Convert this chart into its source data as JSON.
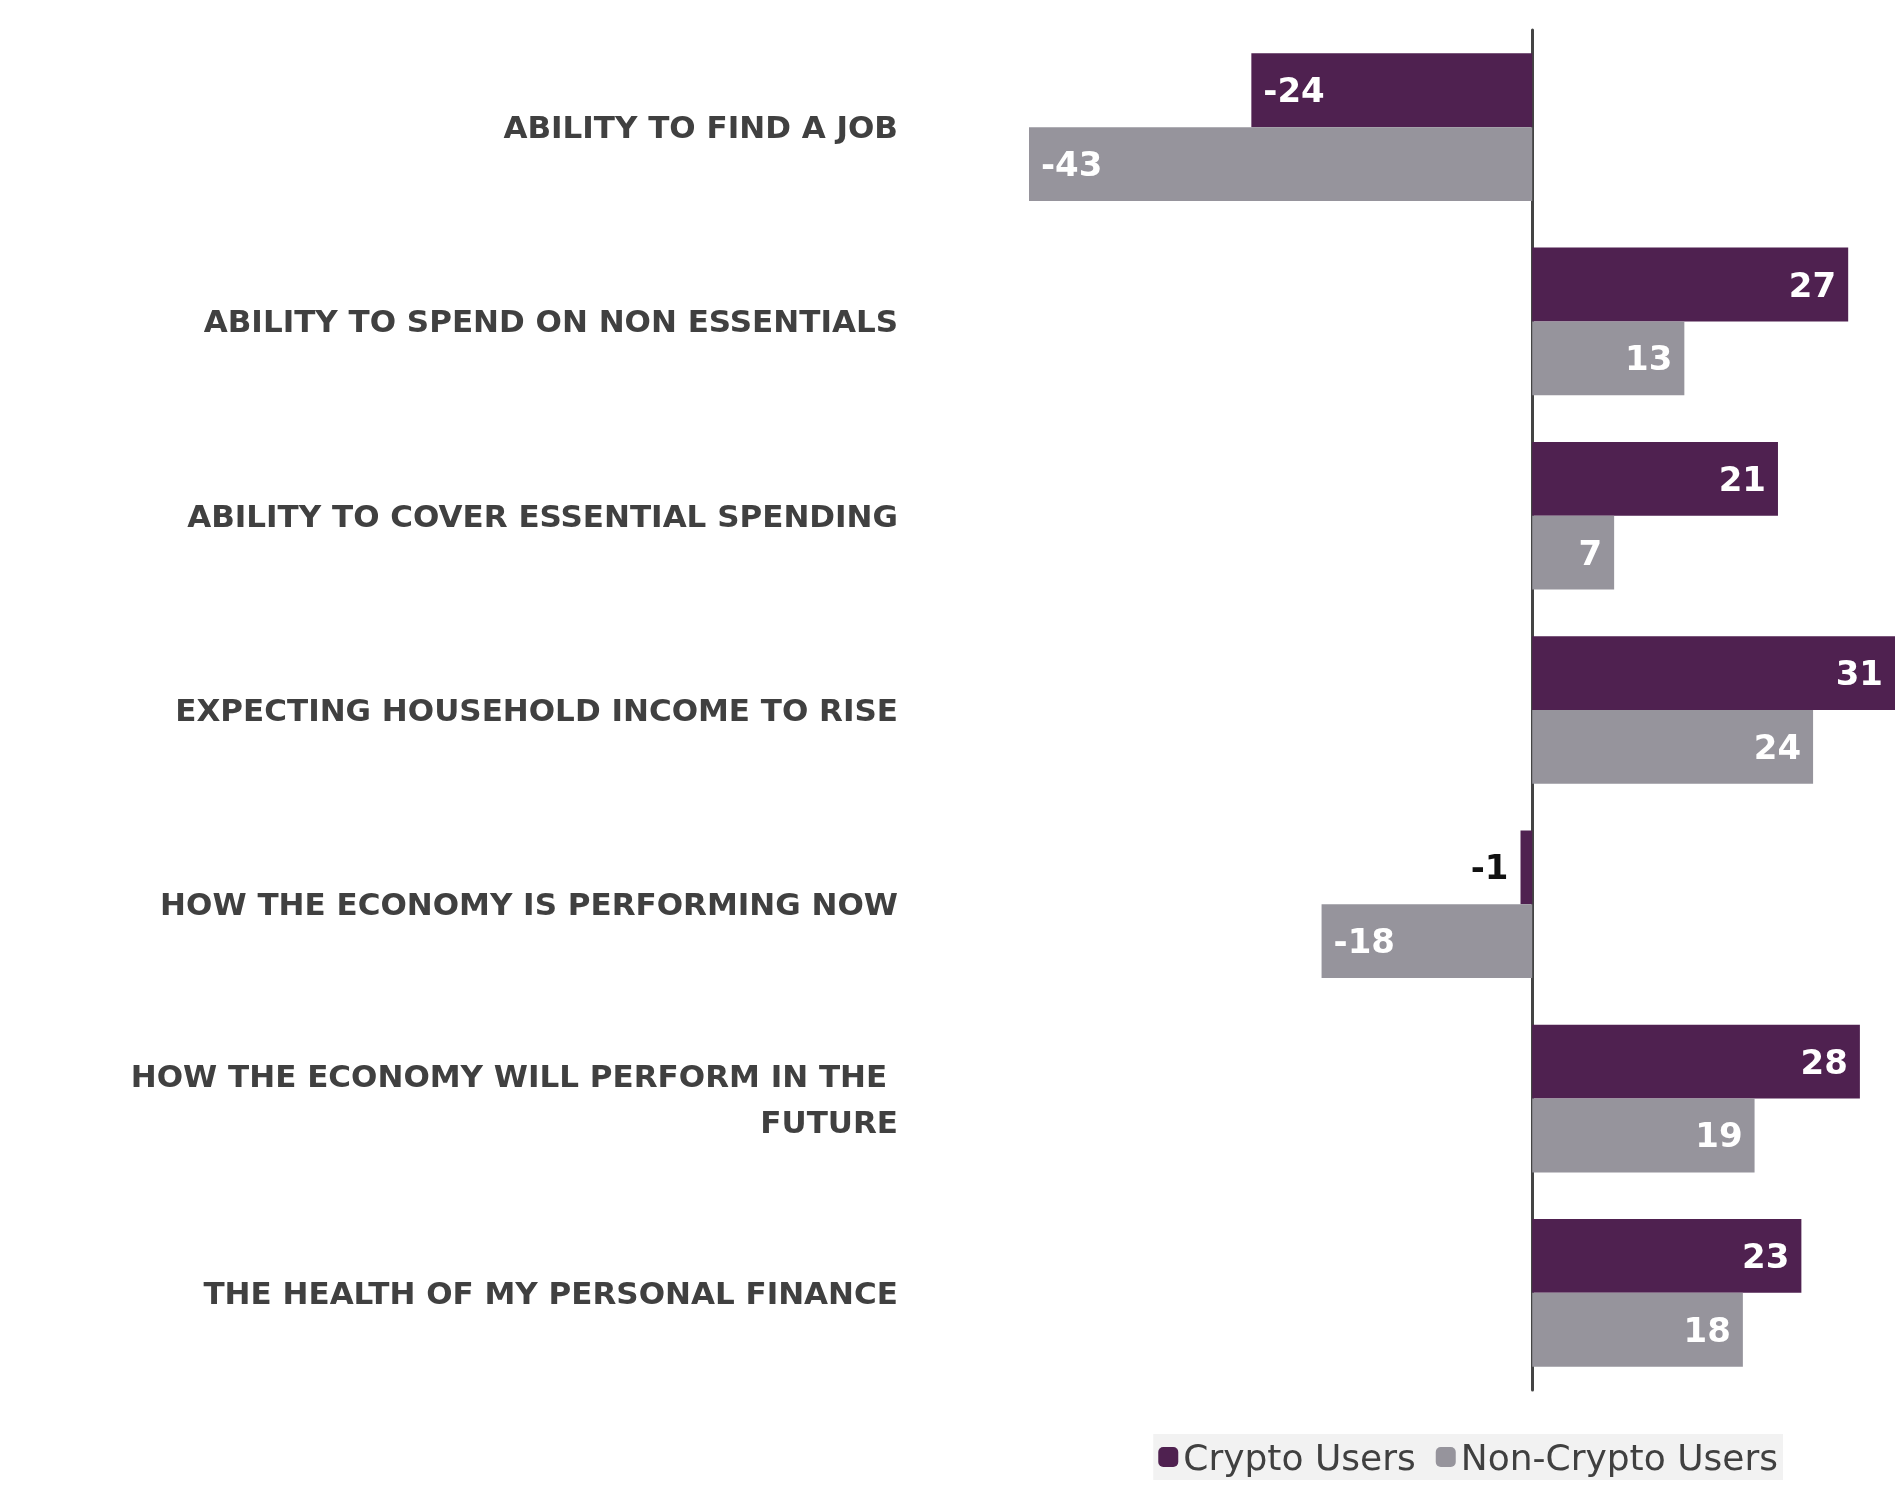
{
  "chart_data": {
    "type": "bar",
    "orientation": "horizontal",
    "categories": [
      "ABILITY TO FIND A JOB",
      "ABILITY TO SPEND ON NON ESSENTIALS",
      "ABILITY TO COVER ESSENTIAL SPENDING",
      "EXPECTING HOUSEHOLD INCOME TO RISE",
      "HOW THE ECONOMY IS PERFORMING NOW",
      "HOW THE ECONOMY WILL PERFORM IN THE FUTURE",
      "THE HEALTH OF MY PERSONAL FINANCE"
    ],
    "series": [
      {
        "name": "Crypto Users",
        "color": "#4f2150",
        "values": [
          -24,
          27,
          21,
          31,
          -1,
          28,
          23
        ]
      },
      {
        "name": "Non-Crypto Users",
        "color": "#96949c",
        "values": [
          -43,
          13,
          7,
          24,
          -18,
          19,
          18
        ]
      }
    ],
    "data_labels": true,
    "legend": "bottom",
    "grid": false
  }
}
